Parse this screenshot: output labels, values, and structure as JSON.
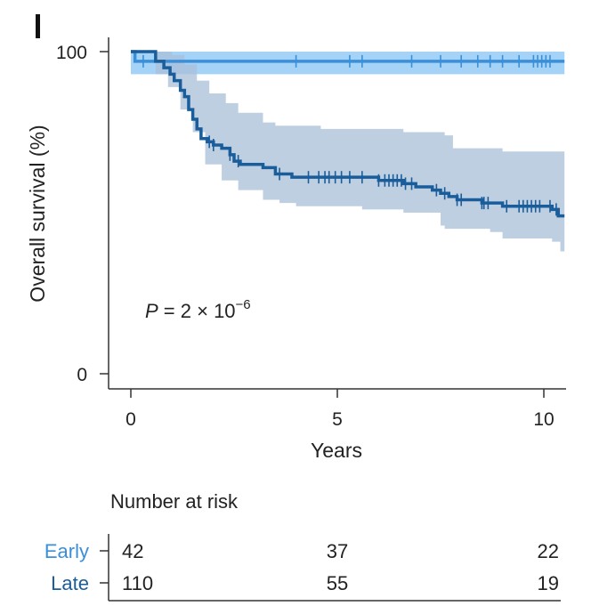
{
  "panel_label": "l",
  "chart_data": {
    "type": "line",
    "subtype": "kaplan-meier",
    "xlabel": "Years",
    "ylabel": "Overall survival (%)",
    "xlim": [
      -0.5,
      10.5
    ],
    "ylim": [
      0,
      100
    ],
    "xticks": [
      0,
      5,
      10
    ],
    "xtick_labels": [
      "0",
      "5",
      "10"
    ],
    "yticks": [
      0,
      100
    ],
    "ytick_labels": [
      "0",
      "100"
    ],
    "annotation": {
      "p_label": "P",
      "p_value_text": " = 2 × 10",
      "p_exponent": "−6"
    },
    "series": [
      {
        "name": "Early",
        "color": "#3a8fd8",
        "band_color": "#5aaff0",
        "steps": [
          [
            0,
            100
          ],
          [
            0.1,
            97
          ],
          [
            10.5,
            97
          ]
        ],
        "ci_upper": [
          [
            0,
            100
          ],
          [
            10.5,
            100
          ]
        ],
        "ci_lower": [
          [
            0,
            93
          ],
          [
            10.5,
            93
          ]
        ],
        "censor_times": [
          0.3,
          4.0,
          5.3,
          5.6,
          6.8,
          7.5,
          8.0,
          8.4,
          8.7,
          9.0,
          9.4,
          9.75,
          9.85,
          9.95,
          10.05,
          10.15
        ]
      },
      {
        "name": "Late",
        "color": "#1a5d9b",
        "band_color": "#a9bfd8",
        "steps": [
          [
            0,
            100
          ],
          [
            0.6,
            97
          ],
          [
            0.8,
            95
          ],
          [
            0.95,
            93
          ],
          [
            1.05,
            91
          ],
          [
            1.2,
            88
          ],
          [
            1.3,
            86
          ],
          [
            1.4,
            82
          ],
          [
            1.5,
            79
          ],
          [
            1.6,
            76
          ],
          [
            1.7,
            73
          ],
          [
            1.85,
            72
          ],
          [
            2.0,
            71
          ],
          [
            2.2,
            70
          ],
          [
            2.4,
            68
          ],
          [
            2.5,
            66
          ],
          [
            2.65,
            65
          ],
          [
            3.2,
            64
          ],
          [
            3.5,
            62
          ],
          [
            3.9,
            61
          ],
          [
            6.0,
            60
          ],
          [
            6.6,
            59
          ],
          [
            6.9,
            58
          ],
          [
            7.3,
            57
          ],
          [
            7.5,
            56
          ],
          [
            7.7,
            55
          ],
          [
            7.9,
            54
          ],
          [
            8.5,
            53
          ],
          [
            9.0,
            52
          ],
          [
            10.2,
            51
          ],
          [
            10.35,
            49
          ],
          [
            10.5,
            49
          ]
        ],
        "ci_upper": [
          [
            0,
            100
          ],
          [
            0.6,
            100
          ],
          [
            1.0,
            99
          ],
          [
            1.3,
            96
          ],
          [
            1.6,
            91
          ],
          [
            1.9,
            87
          ],
          [
            2.3,
            84
          ],
          [
            2.6,
            81
          ],
          [
            3.2,
            78
          ],
          [
            3.5,
            77
          ],
          [
            4.6,
            76
          ],
          [
            6.5,
            76
          ],
          [
            6.6,
            75
          ],
          [
            7.6,
            74
          ],
          [
            7.8,
            70
          ],
          [
            9.0,
            69
          ],
          [
            10.5,
            63
          ],
          [
            10.5,
            62
          ]
        ],
        "ci_lower": [
          [
            0,
            100
          ],
          [
            0.6,
            93
          ],
          [
            0.9,
            89
          ],
          [
            1.2,
            82
          ],
          [
            1.5,
            75
          ],
          [
            1.8,
            65
          ],
          [
            2.2,
            60
          ],
          [
            2.6,
            57
          ],
          [
            3.2,
            54
          ],
          [
            3.6,
            53
          ],
          [
            4.0,
            52
          ],
          [
            5.6,
            51
          ],
          [
            6.5,
            51
          ],
          [
            6.6,
            50
          ],
          [
            7.5,
            46
          ],
          [
            7.6,
            45
          ],
          [
            8.7,
            44
          ],
          [
            9.0,
            42
          ],
          [
            10.2,
            41
          ],
          [
            10.4,
            38
          ],
          [
            10.5,
            37
          ]
        ],
        "censor_times": [
          1.9,
          2.0,
          2.4,
          2.6,
          3.6,
          4.3,
          4.55,
          4.7,
          4.8,
          4.95,
          5.1,
          5.3,
          5.6,
          6.0,
          6.15,
          6.25,
          6.35,
          6.45,
          6.55,
          6.65,
          6.8,
          7.4,
          7.6,
          7.9,
          8.0,
          8.5,
          8.55,
          8.65,
          9.1,
          9.4,
          9.5,
          9.6,
          9.7,
          9.8,
          9.9,
          10.15,
          10.3
        ]
      }
    ],
    "risk_table": {
      "title": "Number at risk",
      "time_points": [
        0,
        5,
        10
      ],
      "rows": [
        {
          "name": "Early",
          "color": "#3a8fd8",
          "counts": [
            "42",
            "37",
            "22"
          ]
        },
        {
          "name": "Late",
          "color": "#1a5d9b",
          "counts": [
            "110",
            "55",
            "19"
          ]
        }
      ]
    }
  }
}
